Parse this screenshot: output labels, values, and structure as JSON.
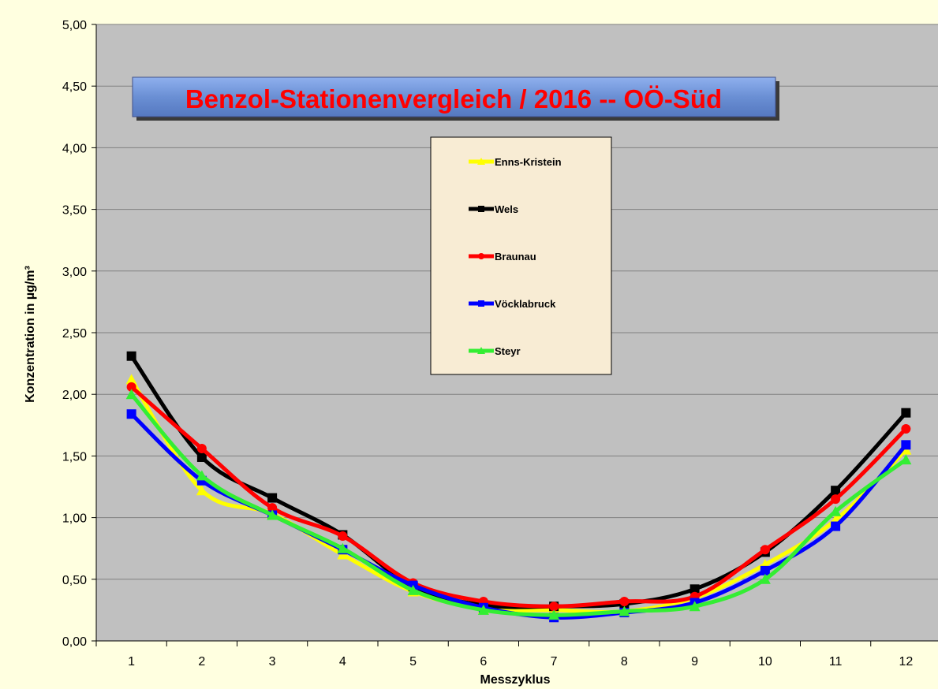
{
  "chart_data": {
    "type": "line",
    "title": "Benzol-Stationenvergleich / 2016  --  OÖ-Süd",
    "xlabel": "Messzyklus",
    "ylabel": "Konzentration in  µg/m³",
    "categories": [
      "1",
      "2",
      "3",
      "4",
      "5",
      "6",
      "7",
      "8",
      "9",
      "10",
      "11",
      "12"
    ],
    "ylim": [
      0,
      5
    ],
    "y_ticks": [
      "0,00",
      "0,50",
      "1,00",
      "1,50",
      "2,00",
      "2,50",
      "3,00",
      "3,50",
      "4,00",
      "4,50",
      "5,00"
    ],
    "grid": true,
    "smooth": true,
    "legend_position": "center-top",
    "plot_background": "#c0c0c0",
    "page_background": "#ffffe0",
    "legend_background": "#f8ecd4",
    "title_background": "#6a8fd4",
    "title_color": "#ff0000",
    "series": [
      {
        "name": "Enns-Kristein",
        "color": "#ffff00",
        "marker": "triangle",
        "values": [
          2.12,
          1.22,
          1.03,
          0.7,
          0.4,
          0.26,
          0.25,
          0.24,
          0.35,
          0.62,
          0.98,
          1.55
        ]
      },
      {
        "name": "Wels",
        "color": "#000000",
        "marker": "square",
        "values": [
          2.31,
          1.49,
          1.16,
          0.86,
          0.44,
          0.29,
          0.28,
          0.3,
          0.42,
          0.72,
          1.22,
          1.85
        ]
      },
      {
        "name": "Braunau",
        "color": "#ff0000",
        "marker": "circle",
        "values": [
          2.06,
          1.56,
          1.08,
          0.85,
          0.47,
          0.32,
          0.28,
          0.32,
          0.36,
          0.74,
          1.15,
          1.72
        ]
      },
      {
        "name": "Vöcklabruck",
        "color": "#0000ff",
        "marker": "square",
        "values": [
          1.84,
          1.3,
          1.02,
          0.74,
          0.45,
          0.27,
          0.19,
          0.23,
          0.31,
          0.57,
          0.93,
          1.59
        ]
      },
      {
        "name": "Steyr",
        "color": "#33ee33",
        "marker": "triangle",
        "values": [
          2.0,
          1.34,
          1.02,
          0.75,
          0.41,
          0.25,
          0.21,
          0.24,
          0.28,
          0.5,
          1.05,
          1.47
        ]
      }
    ]
  }
}
